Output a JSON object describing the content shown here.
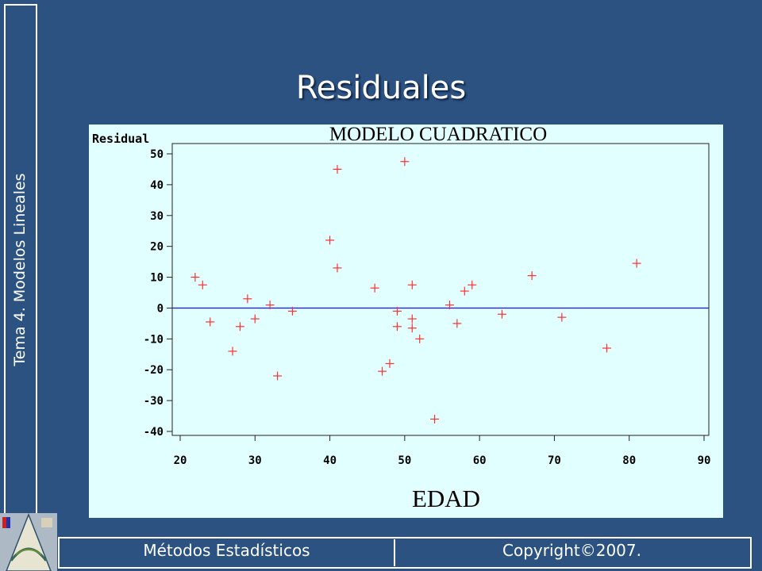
{
  "slide": {
    "title": "Residuales",
    "side_label": "Tema 4. Modelos Lineales",
    "footer_left": "Métodos Estadísticos",
    "footer_right": "Copyright©2007."
  },
  "colors": {
    "background": "#2c5282",
    "plot_background": "#e2ffff",
    "marker": "#ff3030",
    "reference_line": "#2222ee"
  },
  "chart_data": {
    "type": "scatter",
    "title": "MODELO CUADRATICO",
    "xlabel": "EDAD",
    "ylabel": "Residual",
    "xlim": [
      20,
      90
    ],
    "ylim": [
      -40,
      50
    ],
    "xticks": [
      20,
      30,
      40,
      50,
      60,
      70,
      80,
      90
    ],
    "yticks": [
      50,
      40,
      30,
      20,
      10,
      0,
      -10,
      -20,
      -30,
      -40
    ],
    "reference_line_y": 0,
    "marker": "+",
    "grid": false,
    "points": [
      {
        "x": 22,
        "y": 10
      },
      {
        "x": 23,
        "y": 7.5
      },
      {
        "x": 24,
        "y": -4.5
      },
      {
        "x": 27,
        "y": -14
      },
      {
        "x": 28,
        "y": -6
      },
      {
        "x": 29,
        "y": 3
      },
      {
        "x": 30,
        "y": -3.5
      },
      {
        "x": 32,
        "y": 1
      },
      {
        "x": 33,
        "y": -22
      },
      {
        "x": 35,
        "y": -1
      },
      {
        "x": 40,
        "y": 22
      },
      {
        "x": 41,
        "y": 45
      },
      {
        "x": 41,
        "y": 13
      },
      {
        "x": 46,
        "y": 6.5
      },
      {
        "x": 47,
        "y": -20.5
      },
      {
        "x": 48,
        "y": -18
      },
      {
        "x": 49,
        "y": -1
      },
      {
        "x": 49,
        "y": -6
      },
      {
        "x": 50,
        "y": 47.5
      },
      {
        "x": 51,
        "y": 7.5
      },
      {
        "x": 51,
        "y": -3.5
      },
      {
        "x": 51,
        "y": -6.5
      },
      {
        "x": 52,
        "y": -10
      },
      {
        "x": 54,
        "y": -36
      },
      {
        "x": 56,
        "y": 1
      },
      {
        "x": 57,
        "y": -5
      },
      {
        "x": 58,
        "y": 5.5
      },
      {
        "x": 59,
        "y": 7.5
      },
      {
        "x": 63,
        "y": -2
      },
      {
        "x": 67,
        "y": 10.5
      },
      {
        "x": 71,
        "y": -3
      },
      {
        "x": 77,
        "y": -13
      },
      {
        "x": 81,
        "y": 14.5
      }
    ]
  }
}
